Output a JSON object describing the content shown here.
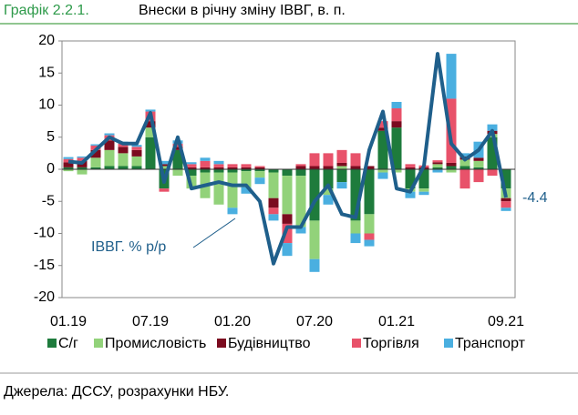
{
  "figure_label": "Графік 2.2.1.",
  "source": "Джерела: ДССУ, розрахунки НБУ.",
  "chart_data": {
    "type": "bar-line",
    "title": "Внески в річну зміну ІВВГ, в. п.",
    "categories": [
      "01.19",
      null,
      null,
      null,
      null,
      null,
      "07.19",
      null,
      null,
      null,
      null,
      null,
      "01.20",
      null,
      null,
      null,
      null,
      null,
      "07.20",
      null,
      null,
      null,
      null,
      null,
      "01.21",
      null,
      null,
      null,
      null,
      null,
      null,
      null,
      "09.21"
    ],
    "ylim": [
      -20,
      20
    ],
    "yticks": [
      -20,
      -15,
      -10,
      -5,
      0,
      5,
      10,
      15,
      20
    ],
    "series": [
      {
        "name": "С/г",
        "type": "bar",
        "color": "#1e7b3c",
        "values": [
          0.3,
          0.3,
          0.3,
          0.5,
          0.5,
          0.5,
          5,
          -3,
          3,
          -1,
          -0.5,
          -0.5,
          -0.5,
          -0.3,
          -0.3,
          -0.5,
          -1,
          -1,
          -8,
          -3,
          -2,
          -8,
          -7,
          6,
          6.5,
          -3,
          -3,
          0.3,
          0.5,
          0.5,
          0.3,
          5,
          -3
        ]
      },
      {
        "name": "Промисловість",
        "type": "bar",
        "color": "#92d27a",
        "values": [
          -0.3,
          -0.8,
          1.5,
          2.5,
          2,
          1.5,
          1.5,
          0.5,
          -1,
          -2,
          -4,
          -5,
          -5.5,
          -2.5,
          -1,
          -4,
          -6,
          -8,
          -6,
          -1,
          0.5,
          -2,
          -3,
          -0.5,
          -0.5,
          -0.5,
          -0.5,
          0.5,
          -0.5,
          1,
          1,
          0.5,
          -1.5
        ]
      },
      {
        "name": "Будівництво",
        "type": "bar",
        "color": "#7b0b1f",
        "values": [
          0.8,
          1,
          1.2,
          1.5,
          1,
          1,
          1,
          0.3,
          0.5,
          0.3,
          0.3,
          0.3,
          0.3,
          0.3,
          0.3,
          -1.5,
          -1.5,
          0.5,
          0.5,
          0.5,
          0.5,
          0.5,
          0.5,
          0.5,
          1,
          0.3,
          0.3,
          0.3,
          0.5,
          0.5,
          0.5,
          0.5,
          -0.5
        ]
      },
      {
        "name": "Торгівля",
        "type": "bar",
        "color": "#e8526a",
        "values": [
          0.5,
          0.5,
          0.7,
          0.8,
          0.5,
          0.5,
          1.5,
          -0.5,
          0.5,
          0.5,
          1,
          0.5,
          0.5,
          0.5,
          0.2,
          -1,
          -3,
          0.3,
          2,
          2,
          2,
          2,
          -1,
          1,
          2,
          0.5,
          0.3,
          0.3,
          10,
          -3,
          -2,
          -1,
          -1
        ]
      },
      {
        "name": "Транспорт",
        "type": "bar",
        "color": "#4aafe0",
        "values": [
          0.3,
          0.2,
          0.2,
          0.3,
          0.3,
          0.3,
          0.3,
          0.5,
          0.5,
          0.3,
          0.5,
          0.5,
          -1,
          -1,
          -1,
          -1,
          -2,
          -1,
          -2,
          -1.5,
          -1,
          -1.5,
          -1,
          -1,
          1,
          -1,
          -0.5,
          -0.5,
          7,
          0.5,
          2.5,
          1,
          -0.5
        ]
      },
      {
        "name": "ІВВГ. % р/р",
        "type": "line",
        "color": "#1f5f8b",
        "values": [
          1.2,
          1.0,
          3,
          5,
          4,
          4,
          8.8,
          -2,
          5,
          -3,
          -2.5,
          -2,
          -2.5,
          -2.5,
          -5,
          -14.7,
          -9,
          -9,
          -5,
          -2.5,
          -7,
          -7.5,
          3,
          9,
          -3,
          -3.5,
          0.5,
          18,
          4,
          1.5,
          3,
          6,
          -4.4
        ]
      }
    ]
  }
}
